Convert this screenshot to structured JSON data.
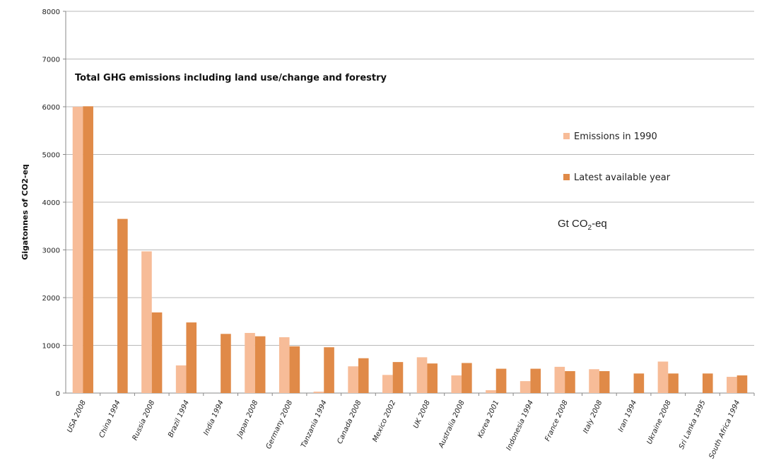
{
  "colors": {
    "series_1990": "#f7bc98",
    "series_latest": "#e08a48",
    "grid": "#b8b8b8",
    "axis": "#888888"
  },
  "unit_label": {
    "prefix": "Gt CO",
    "subscript": "2",
    "suffix": "-eq"
  },
  "chart_data": {
    "type": "bar",
    "title": "Total GHG emissions including land use/change and forestry",
    "xlabel": "",
    "ylabel": "Gigatonnes of CO2-eq",
    "ylim": [
      0,
      8000
    ],
    "yticks": [
      "0",
      "1000",
      "2000",
      "3000",
      "4000",
      "5000",
      "6000",
      "7000",
      "8000"
    ],
    "grid": true,
    "legend_position": "right",
    "categories": [
      "USA 2008",
      "China 1994",
      "Russia 2008",
      "Brazil 1994",
      "India 1994",
      "Japan 2008",
      "Germany 2008",
      "Tanzania 1994",
      "Canada 2008",
      "Mexico 2002",
      "UK 2008",
      "Australia 2008",
      "Korea 2001",
      "Indonesia 1994",
      "France 2008",
      "Italy 2008",
      "Iran 1994",
      "Ukraine 2008",
      "Sri Lanka 1995",
      "South Africa 1994"
    ],
    "series": [
      {
        "name": "Emissions in 1990",
        "values": [
          6000,
          0,
          2970,
          580,
          0,
          1260,
          1170,
          30,
          560,
          380,
          750,
          370,
          60,
          250,
          550,
          500,
          0,
          660,
          0,
          340
        ]
      },
      {
        "name": "Latest available year",
        "values": [
          6010,
          3650,
          1690,
          1480,
          1240,
          1190,
          980,
          960,
          730,
          650,
          620,
          630,
          510,
          510,
          460,
          460,
          410,
          410,
          410,
          370
        ]
      }
    ]
  }
}
